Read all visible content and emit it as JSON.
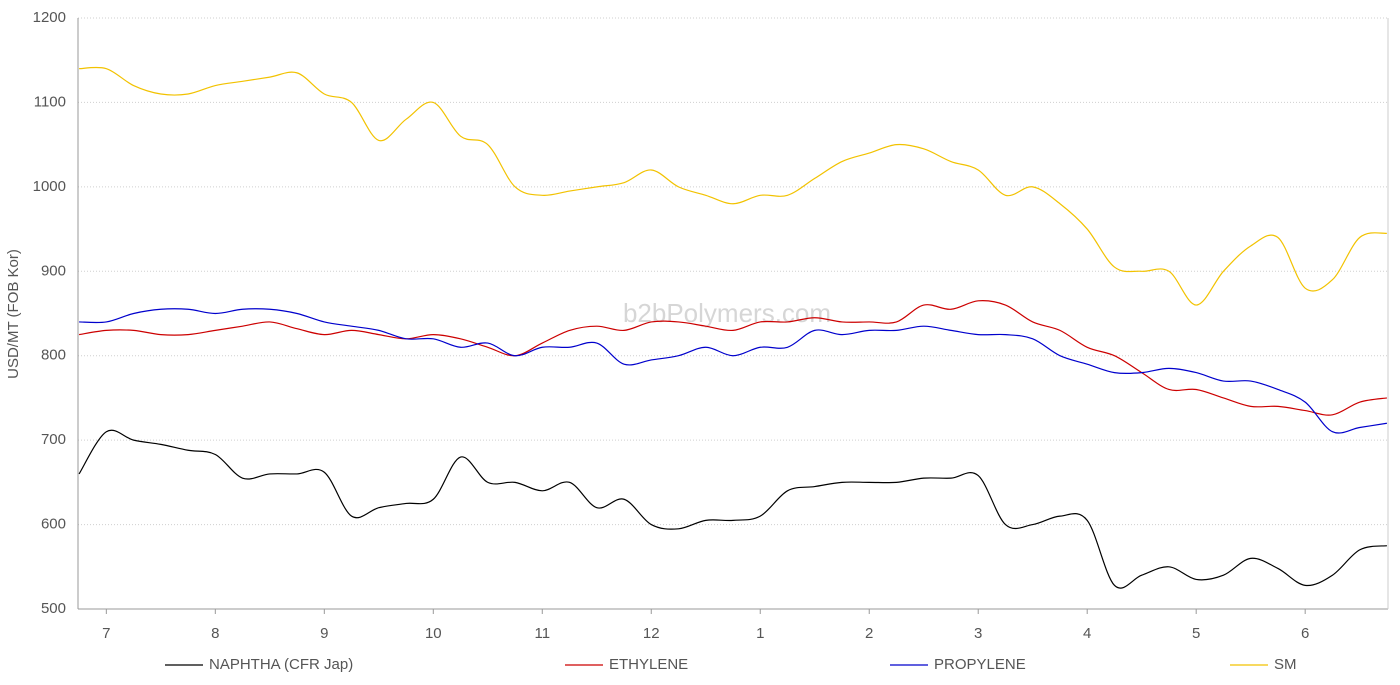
{
  "chart_data": {
    "type": "line",
    "y_label": "USD/MT (FOB Kor)",
    "watermark": "b2bPolymers.com",
    "x": [
      -0.25,
      0,
      0.25,
      0.5,
      0.75,
      1,
      1.25,
      1.5,
      1.75,
      2,
      2.25,
      2.5,
      2.75,
      3,
      3.25,
      3.5,
      3.75,
      4,
      4.25,
      4.5,
      4.75,
      5,
      5.25,
      5.5,
      5.75,
      6,
      6.25,
      6.5,
      6.75,
      7,
      7.25,
      7.5,
      7.75,
      8,
      8.25,
      8.5,
      8.75,
      9,
      9.25,
      9.5,
      9.75,
      10,
      10.25,
      10.5,
      10.75,
      11,
      11.25,
      11.5,
      11.75
    ],
    "xlim": [
      -0.26,
      11.76
    ],
    "xticks": [
      {
        "value": 0,
        "label": "7"
      },
      {
        "value": 1,
        "label": "8"
      },
      {
        "value": 2,
        "label": "9"
      },
      {
        "value": 3,
        "label": "10"
      },
      {
        "value": 4,
        "label": "11"
      },
      {
        "value": 5,
        "label": "12"
      },
      {
        "value": 6,
        "label": "1"
      },
      {
        "value": 7,
        "label": "2"
      },
      {
        "value": 8,
        "label": "3"
      },
      {
        "value": 9,
        "label": "4"
      },
      {
        "value": 10,
        "label": "5"
      },
      {
        "value": 11,
        "label": "6"
      }
    ],
    "ylim": [
      500,
      1200
    ],
    "yticks": [
      500,
      600,
      700,
      800,
      900,
      1000,
      1100,
      1200
    ],
    "grid": true,
    "legend": "bottom",
    "series": [
      {
        "name": "NAPHTHA (CFR Jap)",
        "color": "#000000",
        "values": [
          660,
          710,
          700,
          695,
          688,
          683,
          655,
          660,
          660,
          662,
          610,
          620,
          625,
          630,
          680,
          650,
          650,
          640,
          650,
          620,
          630,
          600,
          595,
          605,
          605,
          610,
          640,
          645,
          650,
          650,
          650,
          655,
          655,
          658,
          600,
          600,
          610,
          605,
          528,
          540,
          550,
          535,
          540,
          560,
          548,
          528,
          540,
          570,
          575
        ]
      },
      {
        "name": "ETHYLENE",
        "color": "#cc0000",
        "values": [
          825,
          830,
          830,
          825,
          825,
          830,
          835,
          840,
          832,
          825,
          830,
          825,
          820,
          825,
          820,
          810,
          800,
          815,
          830,
          835,
          830,
          840,
          840,
          835,
          830,
          840,
          840,
          845,
          840,
          840,
          840,
          860,
          855,
          865,
          860,
          840,
          830,
          810,
          800,
          780,
          760,
          760,
          750,
          740,
          740,
          735,
          730,
          745,
          750
        ]
      },
      {
        "name": "PROPYLENE",
        "color": "#0000cc",
        "values": [
          840,
          840,
          850,
          855,
          855,
          850,
          855,
          855,
          850,
          840,
          835,
          830,
          820,
          820,
          810,
          815,
          800,
          810,
          810,
          815,
          790,
          795,
          800,
          810,
          800,
          810,
          810,
          830,
          825,
          830,
          830,
          835,
          830,
          825,
          825,
          820,
          800,
          790,
          780,
          780,
          785,
          780,
          770,
          770,
          760,
          745,
          710,
          715,
          720
        ]
      },
      {
        "name": "SM",
        "color": "#f2c200",
        "values": [
          1140,
          1140,
          1120,
          1110,
          1110,
          1120,
          1125,
          1130,
          1135,
          1110,
          1100,
          1055,
          1080,
          1100,
          1060,
          1050,
          1000,
          990,
          995,
          1000,
          1005,
          1020,
          1000,
          990,
          980,
          990,
          990,
          1010,
          1030,
          1040,
          1050,
          1045,
          1030,
          1020,
          990,
          1000,
          980,
          950,
          905,
          900,
          900,
          860,
          900,
          930,
          940,
          880,
          890,
          940,
          945
        ]
      }
    ]
  }
}
